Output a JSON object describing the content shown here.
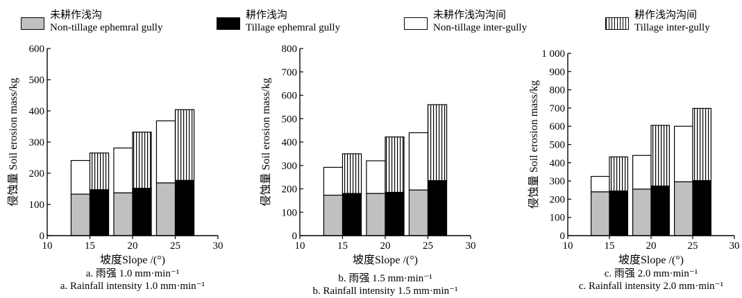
{
  "legend": {
    "non_tillage_gully": {
      "cn": "未耕作浅沟",
      "en": "Non-tillage ephemral gully"
    },
    "tillage_gully": {
      "cn": "耕作浅沟",
      "en": "Tillage ephemral gully"
    },
    "non_tillage_inter": {
      "cn": "未耕作浅沟沟间",
      "en": "Non-tillage inter-gully"
    },
    "tillage_inter": {
      "cn": "耕作浅沟沟间",
      "en": "Tillage inter-gully"
    }
  },
  "colors": {
    "non_tillage_gully": "#c0c0c0",
    "tillage_gully": "#000000",
    "inter_gully": "#ffffff"
  },
  "chart_data": [
    {
      "type": "bar",
      "stacked": true,
      "xlabel": "坡度Slope /(°)",
      "ylabel": "侵蚀量  Soil erosion mass/kg",
      "caption_cn": "a. 雨强 1.0 mm·min⁻¹",
      "caption_en": "a. Rainfall intensity 1.0 mm·min⁻¹",
      "xlim": [
        10,
        30
      ],
      "xticks": [
        10,
        15,
        20,
        25,
        30
      ],
      "ylim": [
        0,
        600
      ],
      "yticks": [
        0,
        100,
        200,
        300,
        400,
        500,
        600
      ],
      "ytick_labels": [
        "0",
        "100",
        "200",
        "300",
        "400",
        "500",
        "600"
      ],
      "categories": [
        15,
        20,
        25
      ],
      "non_tillage": {
        "gully": [
          133,
          137,
          169
        ],
        "total": [
          241,
          281,
          368
        ]
      },
      "tillage": {
        "gully": [
          147,
          152,
          177
        ],
        "total": [
          265,
          332,
          404
        ]
      }
    },
    {
      "type": "bar",
      "stacked": true,
      "xlabel": "坡度Slope /(°)",
      "ylabel": "侵蚀量  Soil erosion mass/kg",
      "caption_cn": "b. 雨强 1.5 mm·min⁻¹",
      "caption_en": "b. Rainfall intensity 1.5 mm·min⁻¹",
      "xlim": [
        10,
        30
      ],
      "xticks": [
        10,
        15,
        20,
        25,
        30
      ],
      "ylim": [
        0,
        800
      ],
      "yticks": [
        0,
        100,
        200,
        300,
        400,
        500,
        600,
        700,
        800
      ],
      "ytick_labels": [
        "0",
        "100",
        "200",
        "300",
        "400",
        "500",
        "600",
        "700",
        "800"
      ],
      "categories": [
        15,
        20,
        25
      ],
      "non_tillage": {
        "gully": [
          173,
          180,
          195
        ],
        "total": [
          292,
          320,
          440
        ]
      },
      "tillage": {
        "gully": [
          180,
          185,
          235
        ],
        "total": [
          350,
          422,
          560
        ]
      }
    },
    {
      "type": "bar",
      "stacked": true,
      "xlabel": "坡度Slope /(°)",
      "ylabel": "侵蚀量  Soil erosion mass/kg",
      "caption_cn": "c. 雨强 2.0 mm·min⁻¹",
      "caption_en": "c. Rainfall intensity 2.0 mm·min⁻¹",
      "xlim": [
        10,
        30
      ],
      "xticks": [
        10,
        15,
        20,
        25,
        30
      ],
      "ylim": [
        0,
        1000
      ],
      "yticks": [
        0,
        100,
        200,
        300,
        400,
        500,
        600,
        700,
        800,
        900,
        1000
      ],
      "ytick_labels": [
        "0",
        "100",
        "200",
        "300",
        "400",
        "500",
        "600",
        "700",
        "800",
        "900",
        "1 000"
      ],
      "categories": [
        15,
        20,
        25
      ],
      "non_tillage": {
        "gully": [
          240,
          255,
          295
        ],
        "total": [
          325,
          440,
          600
        ]
      },
      "tillage": {
        "gully": [
          245,
          272,
          302
        ],
        "total": [
          432,
          605,
          698
        ]
      }
    }
  ]
}
